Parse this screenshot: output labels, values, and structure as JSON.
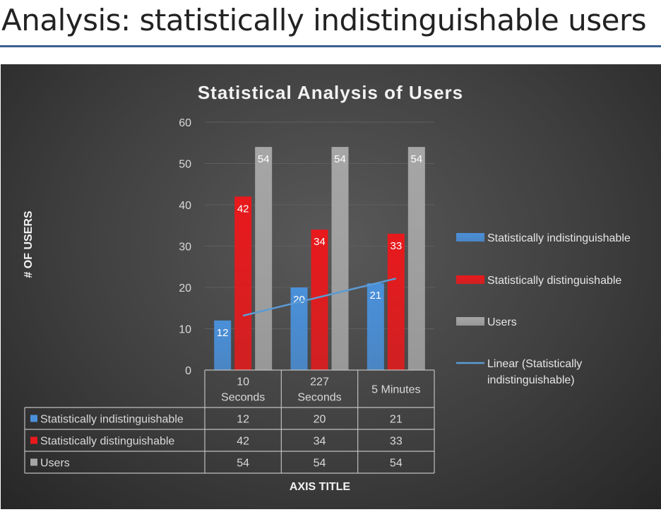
{
  "page": {
    "title": "Analysis: statistically indistinguishable users"
  },
  "colors": {
    "series_blue": "#4a90d9",
    "series_red": "#e8191c",
    "series_gray": "#a6a6a6",
    "trendline": "#5b9bd5",
    "rule": "#3b5f8f"
  },
  "chart_data": {
    "type": "bar",
    "title": "Statistical Analysis of Users",
    "xlabel": "AXIS TITLE",
    "ylabel": "# OF USERS",
    "ylim": [
      0,
      60
    ],
    "yticks": [
      0,
      10,
      20,
      30,
      40,
      50,
      60
    ],
    "grid": true,
    "legend_position": "right",
    "categories": [
      "10 Seconds",
      "227 Seconds",
      "5 Minutes"
    ],
    "category_lines": [
      [
        "10",
        "Seconds"
      ],
      [
        "227",
        "Seconds"
      ],
      [
        "5 Minutes"
      ]
    ],
    "series": [
      {
        "name": "Statistically indistinguishable",
        "values": [
          12,
          20,
          21
        ],
        "color": "#4a90d9"
      },
      {
        "name": "Statistically distinguishable",
        "values": [
          42,
          34,
          33
        ],
        "color": "#e8191c"
      },
      {
        "name": "Users",
        "values": [
          54,
          54,
          54
        ],
        "color": "#a6a6a6"
      }
    ],
    "trendline": {
      "name": "Linear (Statistically indistinguishable)",
      "name_lines": [
        "Linear (Statistically",
        "indistinguishable)"
      ],
      "type": "linear",
      "of_series": "Statistically indistinguishable"
    },
    "data_table": true
  }
}
